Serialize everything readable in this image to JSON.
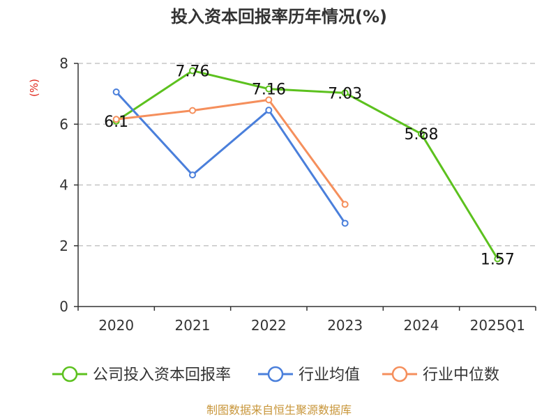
{
  "chart_data": {
    "type": "line",
    "title": "投入资本回报率历年情况(%)",
    "ylabel": "(%)",
    "xlabel": "",
    "categories": [
      "2020",
      "2021",
      "2022",
      "2023",
      "2024",
      "2025Q1"
    ],
    "ylim": [
      0,
      8
    ],
    "yticks": [
      0,
      2,
      4,
      6,
      8
    ],
    "grid": true,
    "legend_position": "bottom",
    "series": [
      {
        "name": "公司投入资本回报率",
        "color": "#5cc11e",
        "values": [
          6.1,
          7.76,
          7.16,
          7.03,
          5.68,
          1.57
        ],
        "labels": [
          "6.1",
          "7.76",
          "7.16",
          "7.03",
          "5.68",
          "1.57"
        ]
      },
      {
        "name": "行业均值",
        "color": "#4a7fdb",
        "values": [
          7.06,
          4.33,
          6.46,
          2.74,
          null,
          null
        ]
      },
      {
        "name": "行业中位数",
        "color": "#f58f5c",
        "values": [
          6.16,
          6.45,
          6.8,
          3.36,
          null,
          null
        ]
      }
    ]
  },
  "source": "制图数据来自恒生聚源数据库",
  "colors": {
    "axis": "#333333",
    "grid": "#bbbbbb",
    "ylabel": "#e0261a",
    "source": "#c8963a"
  }
}
